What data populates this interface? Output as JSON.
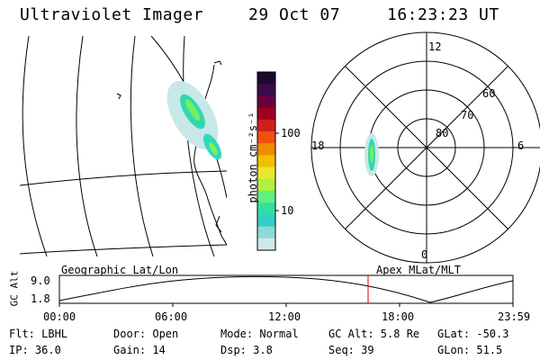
{
  "header": {
    "instrument": "Ultraviolet Imager",
    "date": "29 Oct 07",
    "time": "16:23:23 UT"
  },
  "colorbar": {
    "unit_label": "photon cm⁻²s⁻¹",
    "ticks": [
      "100",
      "10"
    ],
    "colors": [
      "#1a0a2e",
      "#3b0a4a",
      "#6a0040",
      "#a00020",
      "#d0201a",
      "#f05010",
      "#f08a00",
      "#f0c000",
      "#e8e830",
      "#b0f040",
      "#60f080",
      "#30e0a0",
      "#30d0c8",
      "#90d8d8",
      "#d0e8e8"
    ]
  },
  "polar_plot": {
    "mlt_labels": {
      "top": "12",
      "left": "18",
      "right": "6",
      "bottom": "0"
    },
    "lat_labels": [
      "60",
      "70",
      "80"
    ]
  },
  "geo_plot": {
    "label": "Geographic Lat/Lon"
  },
  "apex_label": "Apex MLat/MLT",
  "altitude_plot": {
    "ylabel": "GC Alt",
    "y_ticks": [
      "9.0",
      "1.8"
    ],
    "x_ticks": [
      "00:00",
      "06:00",
      "12:00",
      "18:00",
      "23:59"
    ],
    "marker_color": "#e00000"
  },
  "footer": {
    "row1": {
      "filter": "Flt: LBHL",
      "door": "Door: Open",
      "mode": "Mode: Normal",
      "gc_alt": "GC Alt: 5.8 Re",
      "glat": "GLat: -50.3"
    },
    "row2": {
      "ip": "IP: 36.0",
      "gain": "Gain: 14",
      "dsp": "Dsp:    3.8",
      "seq": "Seq: 39",
      "glon": "GLon:  51.5"
    }
  }
}
